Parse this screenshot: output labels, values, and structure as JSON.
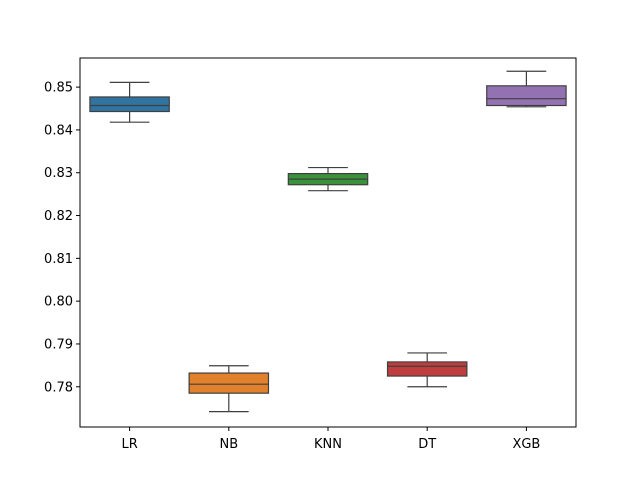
{
  "chart_data": {
    "type": "box",
    "title": "",
    "xlabel": "",
    "ylabel": "",
    "categories": [
      "LR",
      "NB",
      "KNN",
      "DT",
      "XGB"
    ],
    "ylim": [
      0.7706,
      0.8568
    ],
    "yticks": [
      0.78,
      0.79,
      0.8,
      0.81,
      0.82,
      0.83,
      0.84,
      0.85
    ],
    "ytick_labels": [
      "0.78",
      "0.79",
      "0.80",
      "0.81",
      "0.82",
      "0.83",
      "0.84",
      "0.85"
    ],
    "grid": false,
    "legend": "none",
    "boxes": [
      {
        "category": "LR",
        "min": 0.8418,
        "q1": 0.8443,
        "median": 0.8457,
        "q3": 0.8477,
        "max": 0.8511,
        "color": "#3274a1"
      },
      {
        "category": "NB",
        "min": 0.7742,
        "q1": 0.7785,
        "median": 0.7806,
        "q3": 0.7832,
        "max": 0.7849,
        "color": "#e1812c"
      },
      {
        "category": "KNN",
        "min": 0.8258,
        "q1": 0.8272,
        "median": 0.8285,
        "q3": 0.8298,
        "max": 0.8312,
        "color": "#3a923a"
      },
      {
        "category": "DT",
        "min": 0.78,
        "q1": 0.7825,
        "median": 0.7848,
        "q3": 0.7858,
        "max": 0.7879,
        "color": "#c03d3e"
      },
      {
        "category": "XGB",
        "min": 0.8454,
        "q1": 0.8457,
        "median": 0.8473,
        "q3": 0.8503,
        "max": 0.8537,
        "color": "#9372b2"
      }
    ]
  }
}
